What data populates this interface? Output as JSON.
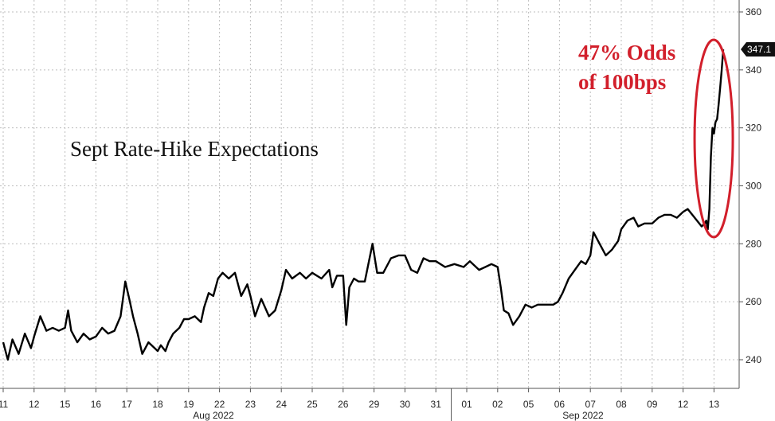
{
  "chart_data": {
    "type": "line",
    "title": "Sept Rate-Hike Expectations",
    "annotation": [
      "47% Odds",
      "of 100bps"
    ],
    "last_value_label": "347.1",
    "ylim": [
      230,
      360
    ],
    "y_ticks": [
      240,
      260,
      280,
      300,
      320,
      340,
      360
    ],
    "x_day_labels": [
      "11",
      "12",
      "15",
      "16",
      "17",
      "18",
      "19",
      "22",
      "23",
      "24",
      "25",
      "26",
      "29",
      "30",
      "31",
      "01",
      "02",
      "05",
      "06",
      "07",
      "08",
      "09",
      "12",
      "13"
    ],
    "month_labels": [
      "Aug 2022",
      "Sep 2022"
    ],
    "grid": true,
    "legend": "none",
    "line_color": "#000000",
    "annotation_color": "#d21f2b",
    "series": [
      {
        "values": [
          [
            0,
            246
          ],
          [
            0.15,
            240
          ],
          [
            0.3,
            247
          ],
          [
            0.5,
            242
          ],
          [
            0.7,
            249
          ],
          [
            0.9,
            244
          ],
          [
            1.0,
            248
          ],
          [
            1.2,
            255
          ],
          [
            1.4,
            250
          ],
          [
            1.6,
            251
          ],
          [
            1.8,
            250
          ],
          [
            2.0,
            251
          ],
          [
            2.1,
            257
          ],
          [
            2.2,
            250
          ],
          [
            2.4,
            246
          ],
          [
            2.6,
            249
          ],
          [
            2.8,
            247
          ],
          [
            3.0,
            248
          ],
          [
            3.2,
            251
          ],
          [
            3.4,
            249
          ],
          [
            3.6,
            250
          ],
          [
            3.8,
            255
          ],
          [
            3.95,
            267
          ],
          [
            4.1,
            260
          ],
          [
            4.2,
            255
          ],
          [
            4.35,
            249
          ],
          [
            4.5,
            242
          ],
          [
            4.7,
            246
          ],
          [
            4.9,
            244
          ],
          [
            5.0,
            243
          ],
          [
            5.1,
            245
          ],
          [
            5.25,
            243
          ],
          [
            5.35,
            246
          ],
          [
            5.5,
            249
          ],
          [
            5.7,
            251
          ],
          [
            5.85,
            254
          ],
          [
            6.0,
            254
          ],
          [
            6.2,
            255
          ],
          [
            6.4,
            253
          ],
          [
            6.5,
            258
          ],
          [
            6.65,
            263
          ],
          [
            6.8,
            262
          ],
          [
            6.95,
            268
          ],
          [
            7.1,
            270
          ],
          [
            7.3,
            268
          ],
          [
            7.5,
            270
          ],
          [
            7.7,
            262
          ],
          [
            7.9,
            266
          ],
          [
            8.0,
            262
          ],
          [
            8.15,
            255
          ],
          [
            8.35,
            261
          ],
          [
            8.6,
            255
          ],
          [
            8.8,
            257
          ],
          [
            9.0,
            264
          ],
          [
            9.15,
            271
          ],
          [
            9.35,
            268
          ],
          [
            9.6,
            270
          ],
          [
            9.8,
            268
          ],
          [
            10.0,
            270
          ],
          [
            10.3,
            268
          ],
          [
            10.55,
            271
          ],
          [
            10.65,
            265
          ],
          [
            10.8,
            269
          ],
          [
            11.0,
            269
          ],
          [
            11.1,
            252
          ],
          [
            11.2,
            265
          ],
          [
            11.35,
            268
          ],
          [
            11.5,
            267
          ],
          [
            11.7,
            267
          ],
          [
            11.95,
            280
          ],
          [
            12.1,
            270
          ],
          [
            12.3,
            270
          ],
          [
            12.55,
            275
          ],
          [
            12.8,
            276
          ],
          [
            13.0,
            276
          ],
          [
            13.2,
            271
          ],
          [
            13.4,
            270
          ],
          [
            13.6,
            275
          ],
          [
            13.8,
            274
          ],
          [
            14.0,
            274
          ],
          [
            14.3,
            272
          ],
          [
            14.6,
            273
          ],
          [
            14.9,
            272
          ],
          [
            15.1,
            274
          ],
          [
            15.4,
            271
          ],
          [
            15.6,
            272
          ],
          [
            15.8,
            273
          ],
          [
            16.0,
            272
          ],
          [
            16.1,
            265
          ],
          [
            16.2,
            257
          ],
          [
            16.35,
            256
          ],
          [
            16.5,
            252
          ],
          [
            16.7,
            255
          ],
          [
            16.9,
            259
          ],
          [
            17.1,
            258
          ],
          [
            17.3,
            259
          ],
          [
            17.5,
            259
          ],
          [
            17.65,
            259
          ],
          [
            17.8,
            259
          ],
          [
            17.95,
            260
          ],
          [
            18.1,
            263
          ],
          [
            18.3,
            268
          ],
          [
            18.5,
            271
          ],
          [
            18.7,
            274
          ],
          [
            18.85,
            273
          ],
          [
            19.0,
            276
          ],
          [
            19.1,
            284
          ],
          [
            19.3,
            280
          ],
          [
            19.5,
            276
          ],
          [
            19.7,
            278
          ],
          [
            19.9,
            281
          ],
          [
            20.0,
            285
          ],
          [
            20.2,
            288
          ],
          [
            20.4,
            289
          ],
          [
            20.55,
            286
          ],
          [
            20.75,
            287
          ],
          [
            21.0,
            287
          ],
          [
            21.2,
            289
          ],
          [
            21.4,
            290
          ],
          [
            21.6,
            290
          ],
          [
            21.8,
            289
          ],
          [
            22.0,
            291
          ],
          [
            22.15,
            292
          ],
          [
            22.3,
            290
          ],
          [
            22.45,
            288
          ],
          [
            22.6,
            286
          ],
          [
            22.7,
            287
          ],
          [
            22.75,
            288
          ],
          [
            22.8,
            285
          ],
          [
            22.85,
            292
          ],
          [
            22.9,
            310
          ],
          [
            22.95,
            320
          ],
          [
            23.0,
            318
          ],
          [
            23.05,
            322
          ],
          [
            23.1,
            323
          ],
          [
            23.15,
            328
          ],
          [
            23.2,
            334
          ],
          [
            23.25,
            340
          ],
          [
            23.3,
            347.1
          ]
        ]
      }
    ]
  }
}
